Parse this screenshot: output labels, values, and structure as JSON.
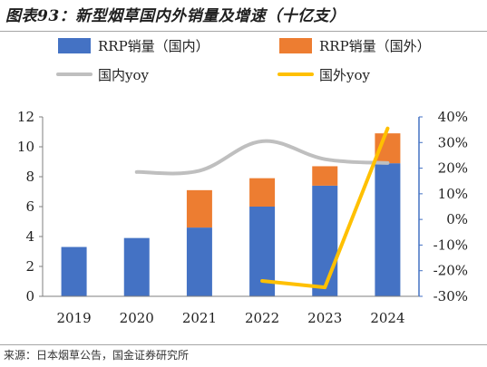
{
  "title": "图表93：新型烟草国内外销量及增速（十亿支）",
  "source": "来源：日本烟草公告，国金证券研究所",
  "chart_data": {
    "type": "bar",
    "categories": [
      "2019",
      "2020",
      "2021",
      "2022",
      "2023",
      "2024"
    ],
    "series": [
      {
        "name": "RRP销量（国内）",
        "kind": "bar",
        "stack": "rrp",
        "axis": "left",
        "color": "#4472c4",
        "values": [
          3.3,
          3.9,
          4.6,
          6.0,
          7.4,
          8.9
        ]
      },
      {
        "name": "RRP销量（国外）",
        "kind": "bar",
        "stack": "rrp",
        "axis": "left",
        "color": "#ed7d31",
        "values": [
          0,
          0,
          2.5,
          1.9,
          1.3,
          2.0
        ]
      },
      {
        "name": "国内yoy",
        "kind": "line",
        "axis": "right",
        "color": "#bfbfbf",
        "values": [
          null,
          18.5,
          19.0,
          30.5,
          23.5,
          22.0
        ]
      },
      {
        "name": "国外yoy",
        "kind": "line",
        "axis": "right",
        "color": "#ffc000",
        "values": [
          null,
          null,
          null,
          -24.0,
          -26.5,
          35.5
        ]
      }
    ],
    "left_axis": {
      "min": 0,
      "max": 12,
      "step": 2,
      "ticks": [
        "0",
        "2",
        "4",
        "6",
        "8",
        "10",
        "12"
      ]
    },
    "right_axis": {
      "min": -30,
      "max": 40,
      "step": 10,
      "ticks": [
        "-30%",
        "-20%",
        "-10%",
        "0%",
        "10%",
        "20%",
        "30%",
        "40%"
      ]
    },
    "grid": false,
    "legend_position": "top"
  }
}
